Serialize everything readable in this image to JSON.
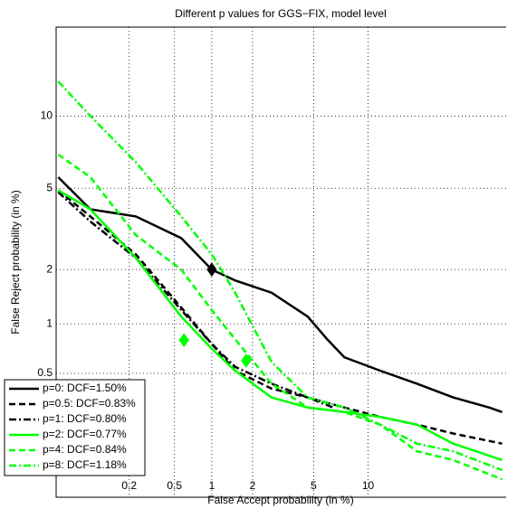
{
  "chart_data": {
    "type": "det",
    "title": "Different p values for GGS−FIX, model level",
    "x_label": "False Accept probability (in %)",
    "y_label": "False Reject probability (in %)",
    "xscale": "probit",
    "yscale": "probit",
    "xlim": [
      0.038,
      36
    ],
    "ylim": [
      0.069,
      20.2
    ],
    "xticks": [
      0.2,
      0.5,
      1,
      2,
      5,
      10
    ],
    "yticks": [
      0.5,
      1,
      2,
      5,
      10
    ],
    "grid": true,
    "legend": "lower left",
    "series": [
      {
        "name": "p=0: DCF=1.50%",
        "color": "#000000",
        "style": "solid",
        "x": [
          0.04,
          0.085,
          0.23,
          0.57,
          1.0,
          1.5,
          2.7,
          4.6,
          6,
          7.5,
          11.5,
          17,
          23.8,
          31.9,
          35
        ],
        "values": [
          5.6,
          4.0,
          3.7,
          2.9,
          2.0,
          1.75,
          1.5,
          1.1,
          0.81,
          0.63,
          0.52,
          0.43,
          0.35,
          0.3,
          0.28
        ],
        "dcf_point": [
          1.0,
          2.0
        ]
      },
      {
        "name": "p=0.5: DCF=0.83%",
        "color": "#000000",
        "style": "dashed",
        "x": [
          0.04,
          0.085,
          0.23,
          0.57,
          1.0,
          1.5,
          2.7,
          4.6,
          7.5,
          11.5,
          17,
          23.8,
          35
        ],
        "values": [
          4.9,
          3.7,
          2.4,
          1.24,
          0.76,
          0.52,
          0.4,
          0.35,
          0.3,
          0.26,
          0.23,
          0.2,
          0.17
        ]
      },
      {
        "name": "p=1: DCF=0.80%",
        "color": "#000000",
        "style": "dashdot",
        "x": [
          0.04,
          0.085,
          0.23,
          0.57,
          1.0,
          1.5,
          2.7,
          4.6,
          6.5
        ],
        "values": [
          4.8,
          3.5,
          2.3,
          1.2,
          0.76,
          0.55,
          0.43,
          0.35,
          0.3
        ]
      },
      {
        "name": "p=2: DCF=0.77%",
        "color": "#00ff00",
        "style": "solid",
        "x": [
          0.04,
          0.085,
          0.23,
          0.57,
          1.0,
          1.5,
          2.7,
          4.6,
          7.5,
          11.5,
          17,
          23.8,
          35
        ],
        "values": [
          4.9,
          4.0,
          2.3,
          1.1,
          0.71,
          0.52,
          0.35,
          0.3,
          0.28,
          0.26,
          0.23,
          0.17,
          0.13
        ],
        "dcf_point": [
          0.6,
          0.8
        ]
      },
      {
        "name": "p=4: DCF=0.84%",
        "color": "#00ff00",
        "style": "dashed",
        "x": [
          0.04,
          0.085,
          0.23,
          0.57,
          1.0,
          1.5,
          2.7,
          4.6,
          7.5,
          11.5,
          17,
          23.8,
          35
        ],
        "values": [
          7.0,
          5.6,
          3.0,
          2.0,
          1.2,
          0.81,
          0.43,
          0.3,
          0.28,
          0.23,
          0.15,
          0.13,
          0.094
        ],
        "dcf_point": [
          1.8,
          0.6
        ]
      },
      {
        "name": "p=8: DCF=1.18%",
        "color": "#00ff00",
        "style": "dashdot",
        "x": [
          0.04,
          0.085,
          0.23,
          0.57,
          1.0,
          1.5,
          2.7,
          4.6,
          7.5,
          11.5,
          17,
          23.8,
          35
        ],
        "values": [
          13.4,
          10,
          6.5,
          3.7,
          2.4,
          1.5,
          0.59,
          0.35,
          0.3,
          0.23,
          0.17,
          0.15,
          0.11
        ]
      }
    ]
  }
}
